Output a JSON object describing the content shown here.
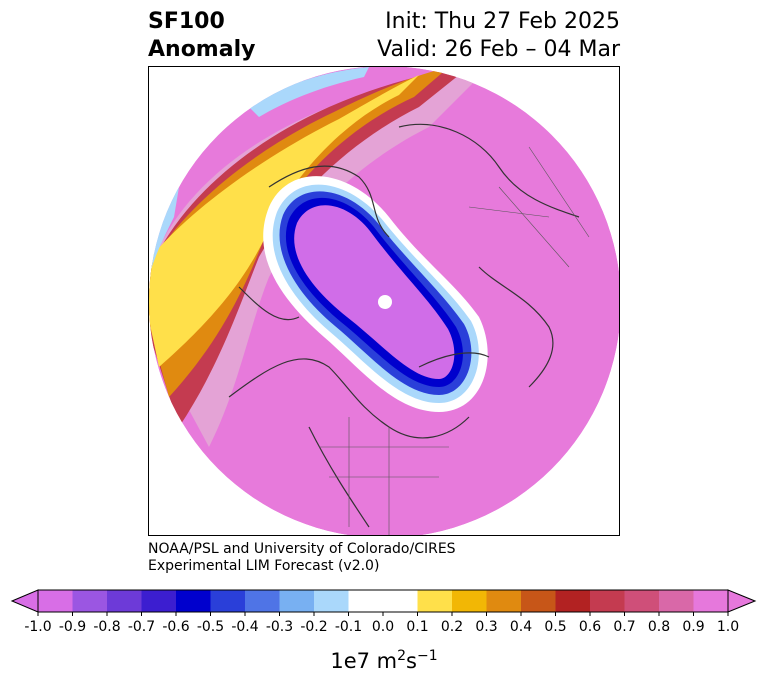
{
  "title": {
    "left_line1": "SF100",
    "left_line2": "Anomaly",
    "right_line1": "Init: Thu 27 Feb 2025",
    "right_line2": "Valid: 26 Feb – 04 Mar"
  },
  "credit": {
    "line1": "NOAA/PSL and University of Colorado/CIRES",
    "line2": "Experimental LIM Forecast (v2.0)"
  },
  "colorbar": {
    "units_base": "1e7 m",
    "units_exp1": "2",
    "units_mid": "s",
    "units_exp2": "−1",
    "under_color": "#d86ee6",
    "over_color": "#e678dc",
    "colors": [
      "#d86ee6",
      "#9b56e2",
      "#6d3ad8",
      "#3c1ed0",
      "#0000cd",
      "#2a3fd9",
      "#4f74e6",
      "#78b0f2",
      "#aad8fb",
      "#ffffff",
      "#ffffff",
      "#ffe04a",
      "#f2b705",
      "#e08a10",
      "#c75618",
      "#b22222",
      "#c43b50",
      "#cf4f79",
      "#d968a8",
      "#e678dc"
    ],
    "ticks": [
      "-1.0",
      "-0.9",
      "-0.8",
      "-0.7",
      "-0.6",
      "-0.5",
      "-0.4",
      "-0.3",
      "-0.2",
      "-0.1",
      "0.0",
      "0.1",
      "0.2",
      "0.3",
      "0.4",
      "0.5",
      "0.6",
      "0.7",
      "0.8",
      "0.9",
      "1.0"
    ]
  },
  "map": {
    "projection": "north-polar-stereographic",
    "pole_marker_color": "#ffffff",
    "negative_center_color": "#d06de8",
    "positive_background_color": "#e77adb",
    "coastline_color": "#333333"
  }
}
